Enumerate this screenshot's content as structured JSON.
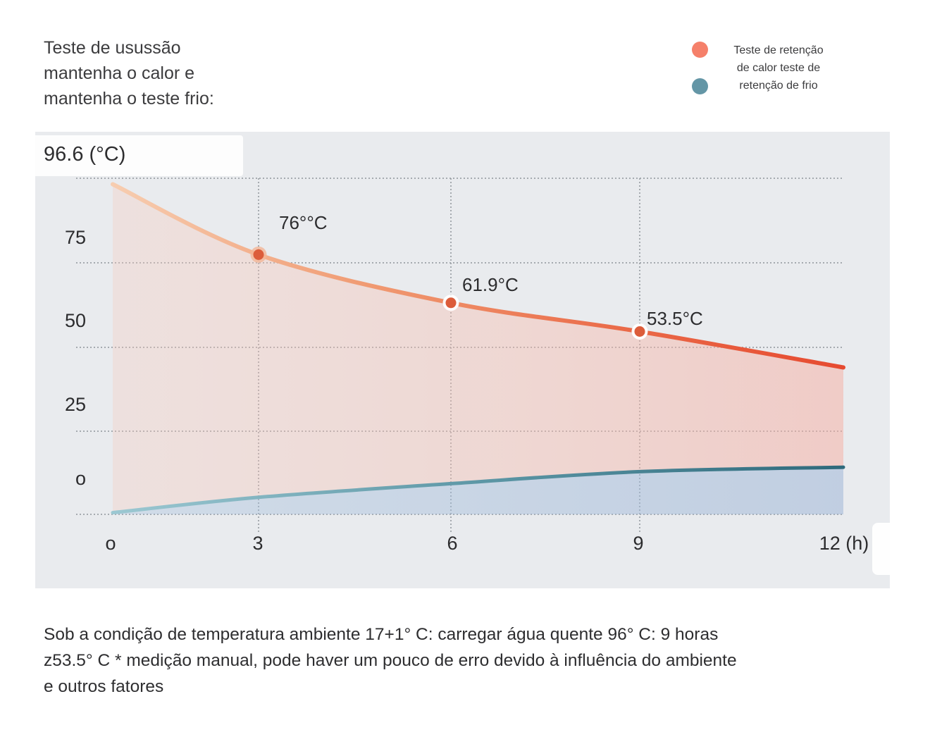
{
  "title": {
    "lines": [
      "Teste de usussão",
      "mantenha o calor e",
      "mantenha o teste frio:"
    ]
  },
  "legend": {
    "items": [
      {
        "name": "hot",
        "color": "#f5806a"
      },
      {
        "name": "cold",
        "color": "#6496a6"
      }
    ],
    "lines": [
      "Teste de retenção",
      "de calor teste de",
      "retenção de frio"
    ]
  },
  "chart": {
    "panel_color": "#e9ebee",
    "grid_color": "#9ba1a6",
    "y_axis_title": "96.6 (°C)",
    "y_ticks": [
      "75",
      "50",
      "25",
      "o"
    ],
    "x_ticks": [
      "o",
      "3",
      "6",
      "9",
      "12 (h)"
    ],
    "point_labels": [
      "76°°C",
      "61.9°C",
      "53.5°C"
    ]
  },
  "chart_data": {
    "type": "line",
    "x": [
      0,
      3,
      6,
      9,
      12
    ],
    "x_unit": "h",
    "y_unit": "°C",
    "ylim": [
      0,
      100
    ],
    "y_gridlines": [
      0,
      25,
      50,
      75,
      100
    ],
    "grid": true,
    "legend_position": "top-right",
    "series": [
      {
        "name": "Teste de retenção de calor",
        "color": "#e8503a",
        "fill": "#f6c9bc",
        "values": [
          96.6,
          76,
          61.9,
          53.5,
          43
        ]
      },
      {
        "name": "Teste de retenção de frio",
        "color": "#336d7e",
        "fill": "#b9cbe0",
        "values": [
          0.5,
          5,
          9,
          12.5,
          13.8
        ]
      }
    ],
    "annotations": [
      {
        "x": 3,
        "y": 76,
        "text": "76°°C"
      },
      {
        "x": 6,
        "y": 61.9,
        "text": "61.9°C"
      },
      {
        "x": 9,
        "y": 53.5,
        "text": "53.5°C"
      }
    ]
  },
  "caption": {
    "lines": [
      "Sob a condição de temperatura ambiente 17+1° C: carregar água quente 96° C: 9 horas",
      "z53.5° C * medição manual, pode haver um pouco de erro devido à influência do ambiente",
      " e outros fatores"
    ]
  }
}
